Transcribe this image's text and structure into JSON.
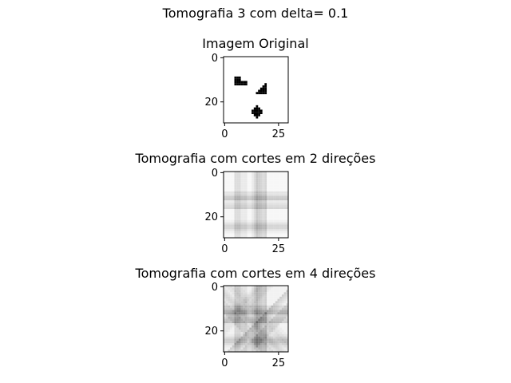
{
  "figure": {
    "suptitle": "Tomografia 3 com delta= 0.1"
  },
  "colors": {
    "background": "#ffffff",
    "foreground": "#000000",
    "colormap": "gray"
  },
  "chart_data": [
    {
      "type": "heatmap",
      "title": "Imagem Original",
      "xlabel": "",
      "ylabel": "",
      "xlim": [
        0,
        29
      ],
      "ylim": [
        29,
        0
      ],
      "x_ticks": [
        "0",
        "25"
      ],
      "y_ticks": [
        "0",
        "20"
      ],
      "x_tick_values": [
        0,
        25
      ],
      "y_tick_values": [
        0,
        20
      ],
      "grid": false,
      "shapes": [
        {
          "kind": "L-shape",
          "rows": [
            9,
            12
          ],
          "cols": [
            5,
            10
          ],
          "value": 0
        },
        {
          "kind": "triangle",
          "rows": [
            12,
            16
          ],
          "cols": [
            15,
            19
          ],
          "value": 0
        },
        {
          "kind": "diamond",
          "rows": [
            22,
            27
          ],
          "cols": [
            13,
            17
          ],
          "value": 0
        }
      ]
    },
    {
      "type": "heatmap",
      "title": "Tomografia com cortes em 2 direções",
      "xlabel": "",
      "ylabel": "",
      "xlim": [
        0,
        29
      ],
      "ylim": [
        29,
        0
      ],
      "x_ticks": [
        "0",
        "25"
      ],
      "y_ticks": [
        "0",
        "20"
      ],
      "x_tick_values": [
        0,
        25
      ],
      "y_tick_values": [
        0,
        20
      ],
      "grid": false,
      "dark_columns": [
        [
          5,
          10
        ],
        [
          15,
          19
        ]
      ],
      "dark_rows": [
        [
          9,
          12
        ],
        [
          12,
          16
        ],
        [
          22,
          27
        ]
      ]
    },
    {
      "type": "heatmap",
      "title": "Tomografia com cortes em 4 direções",
      "xlabel": "",
      "ylabel": "",
      "xlim": [
        0,
        29
      ],
      "ylim": [
        29,
        0
      ],
      "x_ticks": [
        "0",
        "25"
      ],
      "y_ticks": [
        "0",
        "20"
      ],
      "x_tick_values": [
        0,
        25
      ],
      "y_tick_values": [
        0,
        20
      ],
      "grid": false,
      "dark_columns": [
        [
          5,
          10
        ],
        [
          15,
          19
        ]
      ],
      "dark_rows": [
        [
          9,
          12
        ],
        [
          12,
          16
        ],
        [
          22,
          27
        ]
      ],
      "diagonals": true
    }
  ]
}
